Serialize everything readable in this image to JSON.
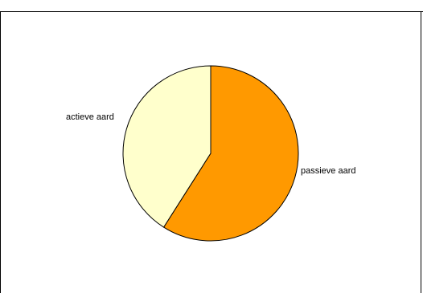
{
  "header": {
    "clipped_text": ""
  },
  "chart_data": {
    "type": "pie",
    "title": "",
    "slices": [
      {
        "label": "passieve aard",
        "value": 59,
        "color": "#ff9900"
      },
      {
        "label": "actieve aard",
        "value": 41,
        "color": "#ffffcc"
      }
    ],
    "start_angle_deg": 0,
    "direction": "clockwise",
    "legend": "none",
    "slice_outline_color": "#000000"
  }
}
